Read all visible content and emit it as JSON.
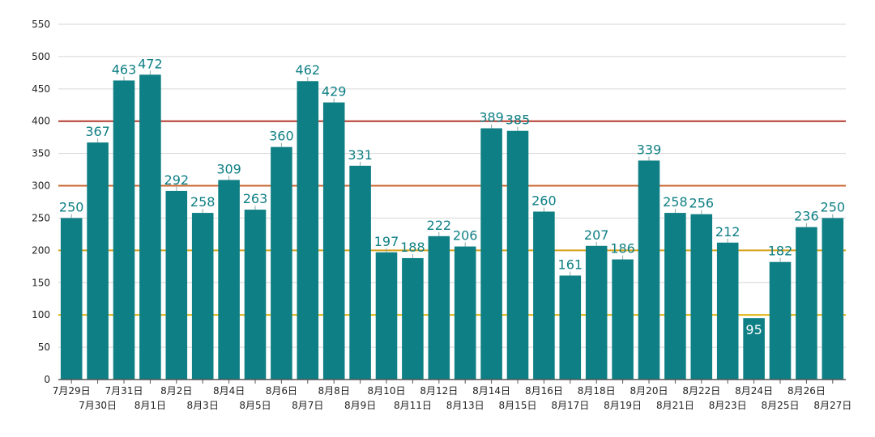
{
  "colors": {
    "bar": "#0e7f84",
    "data_label": "#0e7f84",
    "data_label_inside": "#ffffff",
    "grid": "#d6d6d6",
    "axis": "#555555",
    "tick_text": "#222222",
    "ref_400": "#b23a2e",
    "ref_300": "#c8642e",
    "ref_200": "#d4a017",
    "ref_100": "#e0b40f"
  },
  "chart_data": {
    "type": "bar",
    "title": "",
    "xlabel": "",
    "ylabel": "",
    "ylim": [
      0,
      550
    ],
    "yticks": [
      "0",
      "50",
      "100",
      "150",
      "200",
      "250",
      "300",
      "350",
      "400",
      "450",
      "500",
      "550"
    ],
    "grid": true,
    "legend": "none",
    "categories": [
      "7月29日",
      "7月30日",
      "7月31日",
      "8月1日",
      "8月2日",
      "8月3日",
      "8月4日",
      "8月5日",
      "8月6日",
      "8月7日",
      "8月8日",
      "8月9日",
      "8月10日",
      "8月11日",
      "8月12日",
      "8月13日",
      "8月14日",
      "8月15日",
      "8月16日",
      "8月17日",
      "8月18日",
      "8月19日",
      "8月20日",
      "8月21日",
      "8月22日",
      "8月23日",
      "8月24日",
      "8月25日",
      "8月26日",
      "8月27日"
    ],
    "values": [
      250,
      367,
      463,
      472,
      292,
      258,
      309,
      263,
      360,
      462,
      429,
      331,
      197,
      188,
      222,
      206,
      389,
      385,
      260,
      161,
      207,
      186,
      339,
      258,
      256,
      212,
      95,
      182,
      236,
      250
    ],
    "value_labels": [
      "250",
      "367",
      "463",
      "472",
      "292",
      "258",
      "309",
      "263",
      "360",
      "462",
      "429",
      "331",
      "197",
      "188",
      "222",
      "206",
      "389",
      "385",
      "260",
      "161",
      "207",
      "186",
      "339",
      "258",
      "256",
      "212",
      "95",
      "182",
      "236",
      "250"
    ],
    "reference_lines": [
      {
        "value": 400,
        "color": "#b23a2e"
      },
      {
        "value": 300,
        "color": "#c8642e"
      },
      {
        "value": 200,
        "color": "#d4a017"
      },
      {
        "value": 100,
        "color": "#e0b40f"
      }
    ]
  }
}
